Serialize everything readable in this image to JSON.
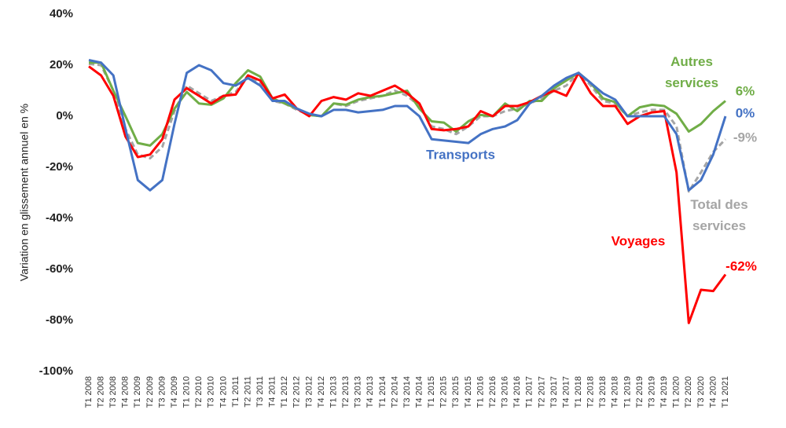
{
  "chart_data": {
    "type": "line",
    "y_axis_label": "Variation en glissement annuel en %",
    "categories": [
      "T1 2008",
      "T2 2008",
      "T3 2008",
      "T4 2008",
      "T1 2009",
      "T2 2009",
      "T3 2009",
      "T4 2009",
      "T1 2010",
      "T2 2010",
      "T3 2010",
      "T4 2010",
      "T1 2011",
      "T2 2011",
      "T3 2011",
      "T4 2011",
      "T1 2012",
      "T2 2012",
      "T3 2012",
      "T4 2012",
      "T1 2013",
      "T2 2013",
      "T3 2013",
      "T4 2013",
      "T1 2014",
      "T2 2014",
      "T3 2014",
      "T4 2014",
      "T1 2015",
      "T2 2015",
      "T3 2015",
      "T4 2015",
      "T1 2016",
      "T2 2016",
      "T3 2016",
      "T4 2016",
      "T1 2017",
      "T2 2017",
      "T3 2017",
      "T4 2017",
      "T1 2018",
      "T2 2018",
      "T3 2018",
      "T4 2018",
      "T1 2019",
      "T2 2019",
      "T3 2019",
      "T4 2019",
      "T1 2020",
      "T2 2020",
      "T3 2020",
      "T4 2020",
      "T1 2021"
    ],
    "ylim": [
      -100,
      40
    ],
    "yticks": [
      {
        "value": -100,
        "label": "-100%"
      },
      {
        "value": -80,
        "label": "-80%"
      },
      {
        "value": -60,
        "label": "-60%"
      },
      {
        "value": -40,
        "label": "-40%"
      },
      {
        "value": -20,
        "label": "-20%"
      },
      {
        "value": 0,
        "label": "0%"
      },
      {
        "value": 20,
        "label": "20%"
      },
      {
        "value": 40,
        "label": "40%"
      }
    ],
    "grid": false,
    "series": [
      {
        "name": "Total des services",
        "color": "#a5a5a5",
        "dashed": true,
        "end_label": "-9%",
        "values": [
          20.5,
          20,
          10,
          -5,
          -15,
          -16.5,
          -12,
          2,
          12,
          9,
          6,
          8,
          9.5,
          16,
          13,
          6,
          5,
          2.5,
          0.5,
          0,
          5,
          4,
          6,
          7,
          8,
          10,
          8,
          4,
          -4,
          -5,
          -7,
          -4,
          0,
          0,
          2,
          3,
          5,
          7,
          10,
          12,
          17,
          12,
          6,
          5,
          0,
          1.5,
          2.5,
          2.5,
          -4,
          -29.5,
          -22,
          -14,
          -9
        ]
      },
      {
        "name": "Autres services",
        "color": "#70ad47",
        "end_label": "6%",
        "values": [
          21,
          21,
          10,
          0,
          -10.5,
          -11.5,
          -7,
          3,
          9.5,
          5,
          4.5,
          7,
          13,
          18,
          15.5,
          7,
          5,
          3,
          0.5,
          0,
          5,
          4.5,
          6.5,
          7.5,
          8,
          9,
          10,
          3,
          -2,
          -2.5,
          -6,
          -2,
          0.5,
          0,
          5,
          2,
          6,
          6,
          11,
          14,
          17,
          13,
          7,
          5.5,
          0,
          3.5,
          4.5,
          4,
          1,
          -6,
          -3,
          2,
          6
        ]
      },
      {
        "name": "Voyages",
        "color": "#ff0000",
        "end_label": "-62%",
        "values": [
          19.5,
          16,
          8,
          -8,
          -16,
          -15,
          -9,
          6.5,
          11,
          8,
          5,
          8,
          8.5,
          16,
          14,
          7,
          8.5,
          3,
          0,
          6,
          7.5,
          6.5,
          9,
          8,
          10,
          12,
          9,
          5,
          -5,
          -5.5,
          -5,
          -4,
          2,
          0,
          4,
          4,
          5.5,
          8,
          10,
          8,
          17,
          9,
          4,
          4,
          -3,
          0,
          1.5,
          2,
          -22,
          -81,
          -68,
          -68.5,
          -62
        ]
      },
      {
        "name": "Transports",
        "color": "#4472c4",
        "end_label": "0%",
        "values": [
          22,
          21,
          16,
          -5,
          -25,
          -29,
          -25,
          -3,
          17,
          20,
          18,
          13,
          12,
          15,
          12,
          6,
          6,
          3,
          1,
          0,
          2.5,
          2.5,
          1.5,
          2,
          2.5,
          4,
          4,
          0,
          -9,
          -9.5,
          -10,
          -10.5,
          -7,
          -5,
          -4,
          -1.5,
          5,
          8,
          12,
          15,
          17,
          13,
          9,
          6.5,
          0,
          0,
          0,
          0,
          -7,
          -29,
          -25,
          -15,
          0
        ]
      }
    ]
  }
}
